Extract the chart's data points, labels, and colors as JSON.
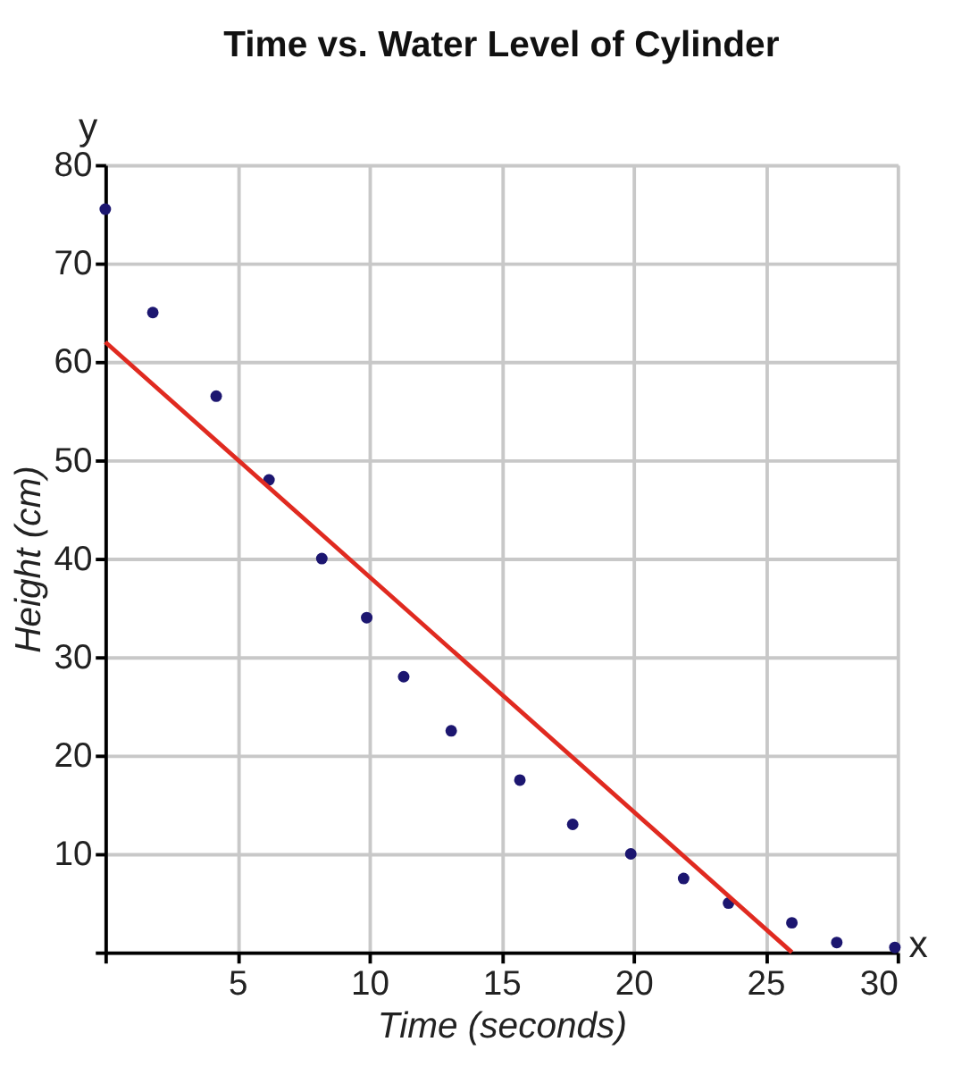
{
  "chart_data": {
    "type": "scatter",
    "title": "Time vs. Water Level of Cylinder",
    "xlabel": "Time (seconds)",
    "ylabel": "Height (cm)",
    "x": [
      0,
      1.8,
      4.2,
      6.2,
      8.2,
      9.9,
      11.3,
      13.1,
      15.7,
      17.7,
      19.9,
      21.9,
      23.6,
      26,
      27.7,
      29.9
    ],
    "series": [
      {
        "color": "#1c1670",
        "marker": "circle",
        "values": [
          75.5,
          65,
          56.5,
          48,
          40,
          34,
          28,
          22.5,
          17.5,
          13,
          10,
          7.5,
          5,
          3,
          1,
          0.5
        ]
      },
      {
        "type": "line",
        "color": "#e02a20",
        "line_style": "solid",
        "x": [
          0,
          26
        ],
        "values": [
          62,
          0
        ]
      }
    ],
    "xlim": [
      0,
      30
    ],
    "ylim": [
      0,
      80
    ],
    "xticks": [
      {
        "value": 0,
        "label": null
      },
      5,
      10,
      15,
      20,
      25,
      30
    ],
    "yticks": [
      {
        "value": 0,
        "label": null
      },
      10,
      20,
      30,
      40,
      50,
      60,
      70,
      80
    ],
    "grid": true,
    "annotations": [
      "y",
      "x"
    ]
  }
}
